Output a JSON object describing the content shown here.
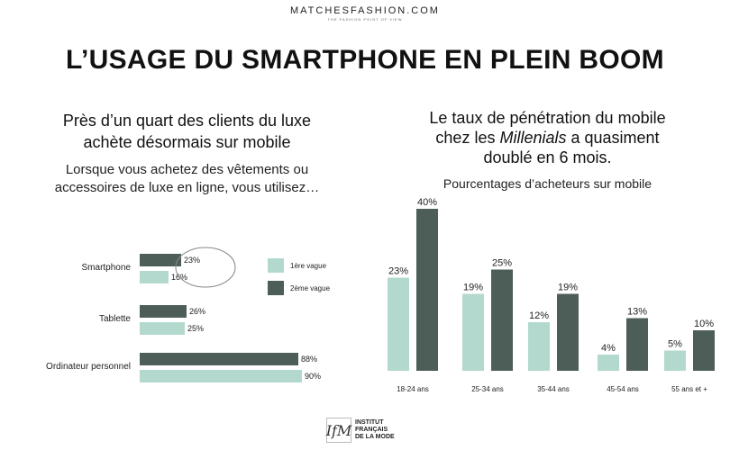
{
  "header": {
    "brand": "MATCHESFASHION.COM",
    "tagline": "THE FASHION POINT OF VIEW",
    "title": "L’USAGE DU SMARTPHONE EN PLEIN BOOM"
  },
  "left": {
    "heading_line1": "Près d’un quart des clients du luxe",
    "heading_line2": "achète désormais sur mobile",
    "sub_line1": "Lorsque vous achetez des vêtements ou",
    "sub_line2": "accessoires de luxe en ligne, vous utilisez…"
  },
  "right": {
    "heading_line1": "Le taux de pénétration du mobile",
    "heading_line2_pre": "chez les ",
    "heading_line2_em": "Millenials",
    "heading_line2_post": " a quasiment",
    "heading_line3": "doublé en 6 mois.",
    "sub": "Pourcentages d’acheteurs sur mobile"
  },
  "footer": {
    "logo_mark": "IfM",
    "logo_line1": "INSTITUT",
    "logo_line2": "FRANÇAIS",
    "logo_line3": "DE LA MODE"
  },
  "colors": {
    "light": "#b3d9cf",
    "dark": "#4d5e58",
    "highlight": "#888888"
  },
  "chart_data": [
    {
      "type": "bar",
      "orientation": "horizontal",
      "categories": [
        "Smartphone",
        "Tablette",
        "Ordinateur personnel"
      ],
      "series": [
        {
          "name": "2ème vague",
          "values": [
            23,
            26,
            88
          ],
          "labels": [
            "23%",
            "26%",
            "88%"
          ],
          "color": "#4d5e58"
        },
        {
          "name": "1ère vague",
          "values": [
            16,
            25,
            90
          ],
          "labels": [
            "16%",
            "25%",
            "90%"
          ],
          "color": "#b3d9cf"
        }
      ],
      "legend": [
        "1ère vague",
        "2ème vague"
      ],
      "legend_position": "right",
      "xlim": [
        0,
        100
      ],
      "highlight": "Smartphone"
    },
    {
      "type": "bar",
      "orientation": "vertical",
      "categories": [
        "18-24 ans",
        "25-34 ans",
        "35-44 ans",
        "45-54 ans",
        "55 ans et +"
      ],
      "series": [
        {
          "name": "1ère vague",
          "values": [
            23,
            19,
            12,
            4,
            5
          ],
          "labels": [
            "23%",
            "19%",
            "12%",
            "4%",
            "5%"
          ],
          "color": "#b3d9cf"
        },
        {
          "name": "2ème vague",
          "values": [
            40,
            25,
            19,
            13,
            10
          ],
          "labels": [
            "40%",
            "25%",
            "19%",
            "13%",
            "10%"
          ],
          "color": "#4d5e58"
        }
      ],
      "ylim": [
        0,
        40
      ]
    }
  ]
}
